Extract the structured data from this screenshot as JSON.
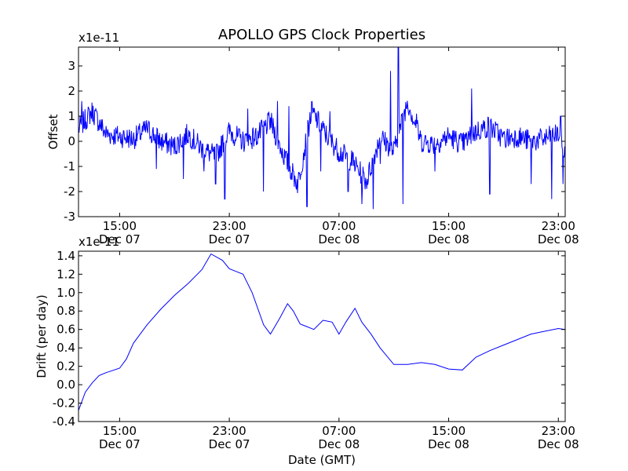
{
  "chart_data": {
    "title": "APOLLO GPS Clock Properties",
    "xlabel": "Date (GMT)",
    "xlim": [
      "2011-12-07 12:00",
      "2011-12-08 23:30"
    ],
    "xticks": [
      {
        "at": "2011-12-07 15:00",
        "time": "15:00",
        "date": "Dec 07"
      },
      {
        "at": "2011-12-07 23:00",
        "time": "23:00",
        "date": "Dec 07"
      },
      {
        "at": "2011-12-08 07:00",
        "time": "07:00",
        "date": "Dec 08"
      },
      {
        "at": "2011-12-08 15:00",
        "time": "15:00",
        "date": "Dec 08"
      },
      {
        "at": "2011-12-08 23:00",
        "time": "23:00",
        "date": "Dec 08"
      }
    ],
    "panels": [
      {
        "type": "line",
        "ylabel": "Offset",
        "multiplier": "x1e-11",
        "ylim": [
          -3,
          3.75
        ],
        "yticks": [
          -3,
          -2,
          -1,
          0,
          1,
          2,
          3
        ],
        "color": "#0000ff",
        "grid": false,
        "series": [
          {
            "x": [
              "2011-12-07 12:00",
              "2011-12-07 13:00",
              "2011-12-07 14:00",
              "2011-12-07 15:00",
              "2011-12-07 16:00",
              "2011-12-07 17:00",
              "2011-12-07 18:00",
              "2011-12-07 19:00",
              "2011-12-07 20:00",
              "2011-12-07 21:00",
              "2011-12-07 22:00",
              "2011-12-07 23:00",
              "2011-12-08 00:00",
              "2011-12-08 01:00",
              "2011-12-08 02:00",
              "2011-12-08 03:00",
              "2011-12-08 04:00",
              "2011-12-08 05:00",
              "2011-12-08 06:00",
              "2011-12-08 07:00",
              "2011-12-08 08:00",
              "2011-12-08 09:00",
              "2011-12-08 10:00",
              "2011-12-08 11:00",
              "2011-12-08 12:00",
              "2011-12-08 13:00",
              "2011-12-08 14:00",
              "2011-12-08 15:00",
              "2011-12-08 16:00",
              "2011-12-08 17:00",
              "2011-12-08 18:00",
              "2011-12-08 19:00",
              "2011-12-08 20:00",
              "2011-12-08 21:00",
              "2011-12-08 22:00",
              "2011-12-08 23:00",
              "2011-12-08 23:30"
            ],
            "values": [
              0.5,
              1.2,
              0.3,
              0.2,
              0.1,
              0.5,
              0.0,
              -0.2,
              0.3,
              -0.3,
              -0.6,
              0.4,
              0.0,
              0.2,
              0.8,
              -0.6,
              -1.7,
              1.2,
              0.3,
              -0.4,
              -0.8,
              -1.6,
              0.2,
              -0.4,
              1.6,
              0.0,
              -0.1,
              0.2,
              -0.1,
              0.4,
              0.6,
              0.1,
              0.2,
              0.0,
              0.1,
              0.3,
              -0.6
            ],
            "extremes": {
              "x": [
                "2011-12-07 12:15",
                "2011-12-07 17:40",
                "2011-12-07 19:40",
                "2011-12-07 21:10",
                "2011-12-07 22:00",
                "2011-12-07 22:40",
                "2011-12-08 00:20",
                "2011-12-08 01:30",
                "2011-12-08 02:30",
                "2011-12-08 03:20",
                "2011-12-08 04:40",
                "2011-12-08 05:40",
                "2011-12-08 06:20",
                "2011-12-08 07:40",
                "2011-12-08 08:40",
                "2011-12-08 09:30",
                "2011-12-08 10:00",
                "2011-12-08 10:45",
                "2011-12-08 11:20",
                "2011-12-08 11:40",
                "2011-12-08 12:40",
                "2011-12-08 14:00",
                "2011-12-08 16:40",
                "2011-12-08 18:00",
                "2011-12-08 21:00",
                "2011-12-08 22:30",
                "2011-12-08 23:10",
                "2011-12-08 23:20"
              ],
              "values": [
                1.6,
                -1.1,
                -1.5,
                -1.2,
                -1.7,
                -2.3,
                1.3,
                -2.0,
                1.6,
                1.4,
                -2.6,
                -1.2,
                1.2,
                -2.0,
                -2.5,
                -2.7,
                -0.9,
                2.8,
                3.8,
                -2.5,
                1.1,
                -1.2,
                2.1,
                -2.1,
                -1.7,
                -2.3,
                1.0,
                -1.7
              ]
            }
          }
        ]
      },
      {
        "type": "line",
        "ylabel": "Drift (per day)",
        "multiplier": "x1e-11",
        "ylim": [
          -0.4,
          1.45
        ],
        "yticks": [
          -0.4,
          -0.2,
          0.0,
          0.2,
          0.4,
          0.6,
          0.8,
          1.0,
          1.2,
          1.4
        ],
        "color": "#0000ff",
        "grid": false,
        "series": [
          {
            "x": [
              "2011-12-07 12:00",
              "2011-12-07 12:30",
              "2011-12-07 13:00",
              "2011-12-07 13:30",
              "2011-12-07 14:00",
              "2011-12-07 15:00",
              "2011-12-07 15:30",
              "2011-12-07 16:00",
              "2011-12-07 17:00",
              "2011-12-07 18:00",
              "2011-12-07 19:00",
              "2011-12-07 20:00",
              "2011-12-07 21:00",
              "2011-12-07 21:40",
              "2011-12-07 22:30",
              "2011-12-07 23:00",
              "2011-12-07 23:30",
              "2011-12-08 00:00",
              "2011-12-08 00:40",
              "2011-12-08 01:30",
              "2011-12-08 02:00",
              "2011-12-08 02:40",
              "2011-12-08 03:15",
              "2011-12-08 03:40",
              "2011-12-08 04:10",
              "2011-12-08 04:30",
              "2011-12-08 05:10",
              "2011-12-08 05:50",
              "2011-12-08 06:30",
              "2011-12-08 07:00",
              "2011-12-08 07:30",
              "2011-12-08 08:10",
              "2011-12-08 08:40",
              "2011-12-08 09:20",
              "2011-12-08 10:00",
              "2011-12-08 11:00",
              "2011-12-08 12:00",
              "2011-12-08 13:00",
              "2011-12-08 14:00",
              "2011-12-08 15:00",
              "2011-12-08 16:00",
              "2011-12-08 17:00",
              "2011-12-08 18:00",
              "2011-12-08 19:00",
              "2011-12-08 20:00",
              "2011-12-08 21:00",
              "2011-12-08 22:00",
              "2011-12-08 23:00",
              "2011-12-08 23:30"
            ],
            "values": [
              -0.28,
              -0.08,
              0.02,
              0.1,
              0.13,
              0.18,
              0.28,
              0.45,
              0.65,
              0.82,
              0.97,
              1.1,
              1.25,
              1.42,
              1.35,
              1.26,
              1.23,
              1.2,
              1.0,
              0.65,
              0.55,
              0.72,
              0.88,
              0.8,
              0.66,
              0.64,
              0.6,
              0.7,
              0.68,
              0.55,
              0.68,
              0.83,
              0.68,
              0.55,
              0.4,
              0.22,
              0.22,
              0.24,
              0.22,
              0.17,
              0.16,
              0.3,
              0.37,
              0.43,
              0.49,
              0.55,
              0.58,
              0.61,
              0.6
            ]
          }
        ]
      }
    ]
  }
}
